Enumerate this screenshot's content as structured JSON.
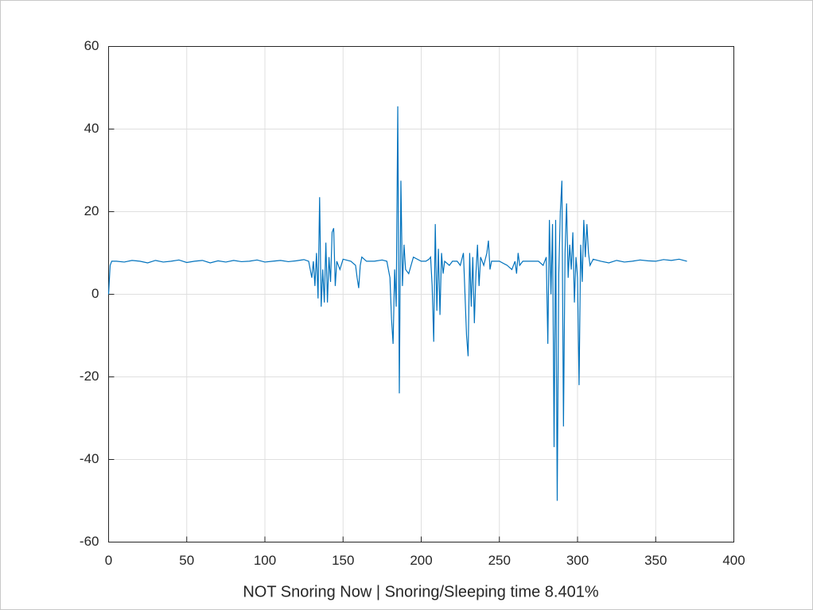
{
  "chart_data": {
    "type": "line",
    "xlabel": "NOT Snoring Now | Snoring/Sleeping time 8.401%",
    "x": [
      0,
      1,
      2,
      5,
      10,
      15,
      20,
      25,
      30,
      35,
      40,
      45,
      50,
      55,
      60,
      65,
      70,
      75,
      80,
      85,
      90,
      95,
      100,
      105,
      110,
      115,
      120,
      125,
      128,
      130,
      131,
      132,
      133,
      134,
      135,
      136,
      137,
      138,
      139,
      140,
      141,
      142,
      143,
      144,
      145,
      146,
      148,
      150,
      155,
      158,
      159,
      160,
      161,
      162,
      165,
      170,
      175,
      178,
      180,
      181,
      182,
      183,
      184,
      185,
      186,
      187,
      188,
      189,
      190,
      192,
      195,
      200,
      203,
      205,
      206,
      207,
      208,
      209,
      210,
      211,
      212,
      213,
      214,
      215,
      218,
      220,
      223,
      225,
      227,
      228,
      229,
      230,
      231,
      232,
      233,
      234,
      235,
      236,
      237,
      238,
      240,
      242,
      243,
      244,
      245,
      250,
      255,
      258,
      260,
      261,
      262,
      263,
      265,
      270,
      275,
      278,
      280,
      281,
      282,
      283,
      284,
      285,
      286,
      287,
      288,
      289,
      290,
      291,
      292,
      293,
      294,
      295,
      296,
      297,
      298,
      299,
      300,
      301,
      302,
      303,
      304,
      305,
      306,
      307,
      308,
      310,
      315,
      320,
      325,
      330,
      335,
      340,
      345,
      350,
      355,
      360,
      365,
      370
    ],
    "series": [
      {
        "color": "#0072bd",
        "values": [
          0,
          7,
          8,
          8,
          7.8,
          8.2,
          8,
          7.6,
          8.2,
          7.8,
          8,
          8.3,
          7.7,
          8,
          8.2,
          7.6,
          8.1,
          7.8,
          8.2,
          7.9,
          8,
          8.3,
          7.8,
          8,
          8.2,
          7.9,
          8.1,
          8.4,
          8,
          4,
          8,
          2,
          10,
          -1,
          23.5,
          -3,
          6,
          -2,
          12.5,
          -2,
          9,
          3,
          15,
          16,
          2,
          8,
          6,
          8.5,
          8,
          7,
          4,
          1.5,
          7,
          9,
          8,
          8,
          8.3,
          8,
          4,
          -6,
          -12,
          6,
          -3,
          45.5,
          -24,
          27.5,
          2,
          12,
          6,
          5,
          9,
          8,
          8,
          8.5,
          9,
          2,
          -11.5,
          17,
          -4,
          11,
          -5,
          10,
          5,
          8,
          7,
          8,
          8,
          7,
          10,
          0,
          -10,
          -15,
          10,
          -3,
          9,
          -7,
          5,
          12,
          2,
          9,
          7,
          10,
          13,
          6,
          8,
          8,
          7,
          6,
          8,
          5,
          10,
          7,
          8,
          8,
          8,
          7,
          9,
          -12,
          18,
          0,
          17,
          -37,
          18,
          -50,
          5,
          20,
          27.5,
          -32,
          10,
          22,
          4,
          12,
          6,
          15,
          -2,
          9,
          4,
          -22,
          12,
          3,
          18,
          9,
          17,
          10,
          7,
          8.5,
          8,
          7.6,
          8.2,
          7.8,
          8,
          8.3,
          8.1,
          8,
          8.4,
          8.2,
          8.5,
          8
        ]
      }
    ],
    "xlim": [
      0,
      400
    ],
    "xticks": [
      0,
      50,
      100,
      150,
      200,
      250,
      300,
      350,
      400
    ],
    "ylim": [
      -60,
      60
    ],
    "yticks": [
      -60,
      -40,
      -20,
      0,
      20,
      40,
      60
    ],
    "grid": true
  }
}
